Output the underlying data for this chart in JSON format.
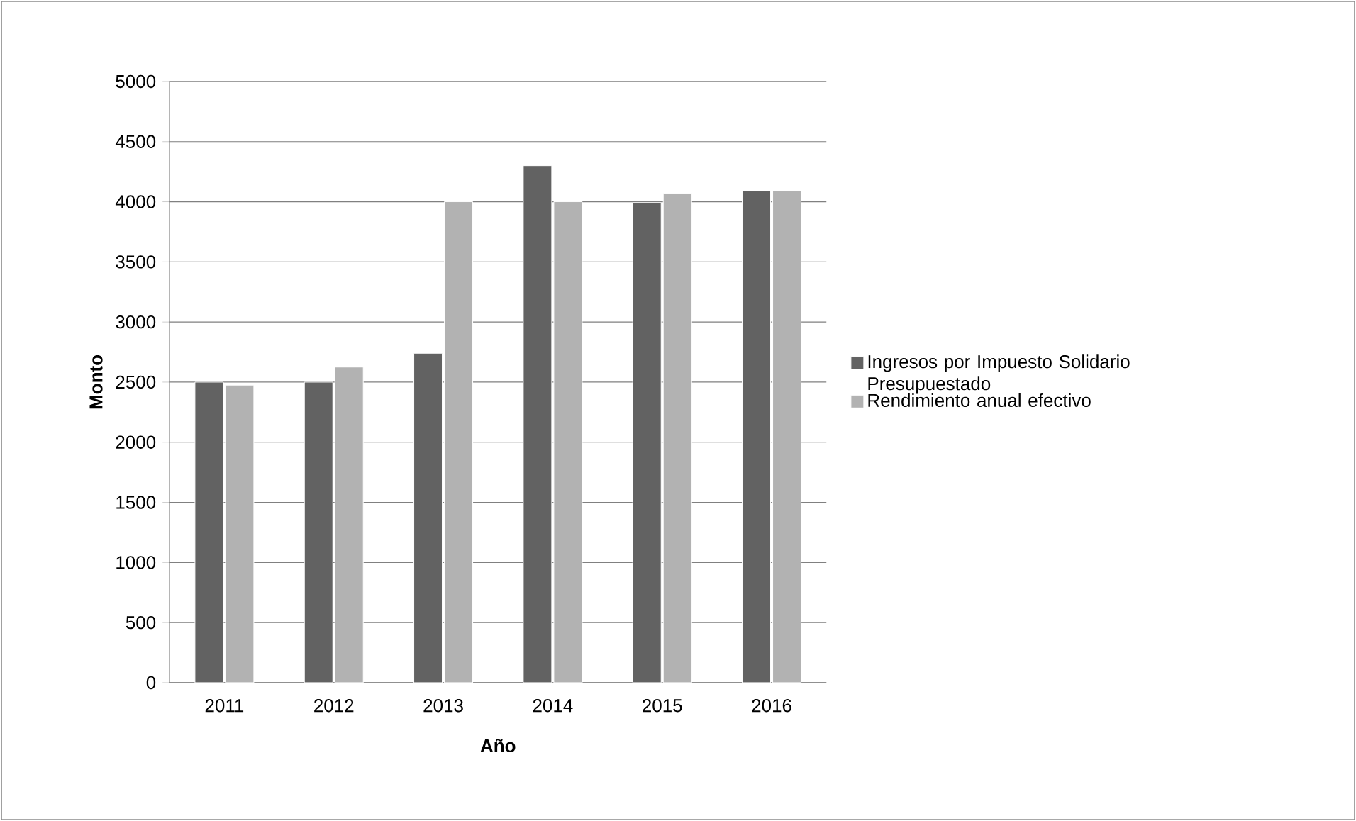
{
  "chart_data": {
    "type": "bar",
    "xlabel": "Año",
    "ylabel": "Monto",
    "categories": [
      "2011",
      "2012",
      "2013",
      "2014",
      "2015",
      "2016"
    ],
    "series": [
      {
        "name": "Ingresos por Impuesto Solidario Presupuestado",
        "color": "#626262",
        "values": [
          2500,
          2500,
          2740,
          4300,
          3990,
          4090
        ]
      },
      {
        "name": "Rendimiento anual efectivo",
        "color": "#b2b2b2",
        "values": [
          2475,
          2625,
          4000,
          4000,
          4070,
          4090
        ]
      }
    ],
    "ylim": [
      0,
      5000
    ],
    "yticks": [
      0,
      500,
      1000,
      1500,
      2000,
      2500,
      3000,
      3500,
      4000,
      4500,
      5000
    ],
    "grid": "y",
    "legend": "right"
  }
}
